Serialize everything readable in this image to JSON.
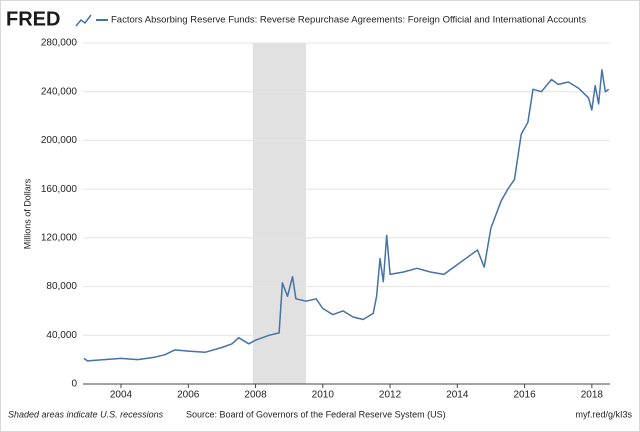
{
  "chart_data": {
    "type": "line",
    "logo": "FRED",
    "title": "Factors Absorbing Reserve Funds: Reverse Repurchase Agreements: Foreign Official and International Accounts",
    "y_label": "Millions of Dollars",
    "footnote": "Shaded areas indicate U.S. recessions",
    "source": "Source: Board of Governors of the Federal Reserve System (US)",
    "link": "myf.red/g/kI3s",
    "x": [
      2002.9,
      2003.0,
      2003.5,
      2004.0,
      2004.5,
      2005.0,
      2005.3,
      2005.6,
      2006.0,
      2006.5,
      2007.0,
      2007.3,
      2007.5,
      2007.8,
      2008.0,
      2008.4,
      2008.7,
      2008.8,
      2008.95,
      2009.1,
      2009.2,
      2009.5,
      2009.8,
      2010.0,
      2010.3,
      2010.6,
      2010.9,
      2011.2,
      2011.5,
      2011.6,
      2011.7,
      2011.8,
      2011.9,
      2012.0,
      2012.4,
      2012.8,
      2013.2,
      2013.6,
      2014.0,
      2014.3,
      2014.6,
      2014.8,
      2015.0,
      2015.3,
      2015.5,
      2015.7,
      2015.9,
      2016.1,
      2016.25,
      2016.5,
      2016.8,
      2017.0,
      2017.3,
      2017.6,
      2017.9,
      2018.0,
      2018.1,
      2018.2,
      2018.3,
      2018.4,
      2018.5
    ],
    "series": [
      {
        "name": "Reverse Repurchase Agreements",
        "color": "#4572a7",
        "values": [
          21000,
          19000,
          20000,
          21000,
          20000,
          22000,
          24000,
          28000,
          27000,
          26000,
          30000,
          33000,
          38000,
          33000,
          36000,
          40000,
          42000,
          83000,
          72000,
          88000,
          70000,
          68000,
          70000,
          62000,
          57000,
          60000,
          55000,
          53000,
          58000,
          72000,
          103000,
          84000,
          122000,
          90000,
          92000,
          95000,
          92000,
          90000,
          98000,
          104000,
          110000,
          96000,
          128000,
          150000,
          160000,
          168000,
          205000,
          215000,
          242000,
          240000,
          250000,
          246000,
          248000,
          243000,
          235000,
          225000,
          245000,
          230000,
          258000,
          240000,
          242000
        ]
      }
    ],
    "recessions": [
      [
        2007.92,
        2009.5
      ]
    ],
    "recession_color": "#e1e1e1",
    "xlim": [
      2002.87,
      2018.54
    ],
    "xticks": [
      2004,
      2006,
      2008,
      2010,
      2012,
      2014,
      2016,
      2018
    ],
    "ylim": [
      0,
      280000
    ],
    "yticks": [
      0,
      {
        "value": 40000,
        "label": "40,000"
      },
      {
        "value": 80000,
        "label": "80,000"
      },
      {
        "value": 120000,
        "label": "120,000"
      },
      {
        "value": 160000,
        "label": "160,000"
      },
      {
        "value": 200000,
        "label": "200,000"
      },
      {
        "value": 240000,
        "label": "240,000"
      },
      {
        "value": 280000,
        "label": "280,000"
      }
    ],
    "grid": true
  }
}
